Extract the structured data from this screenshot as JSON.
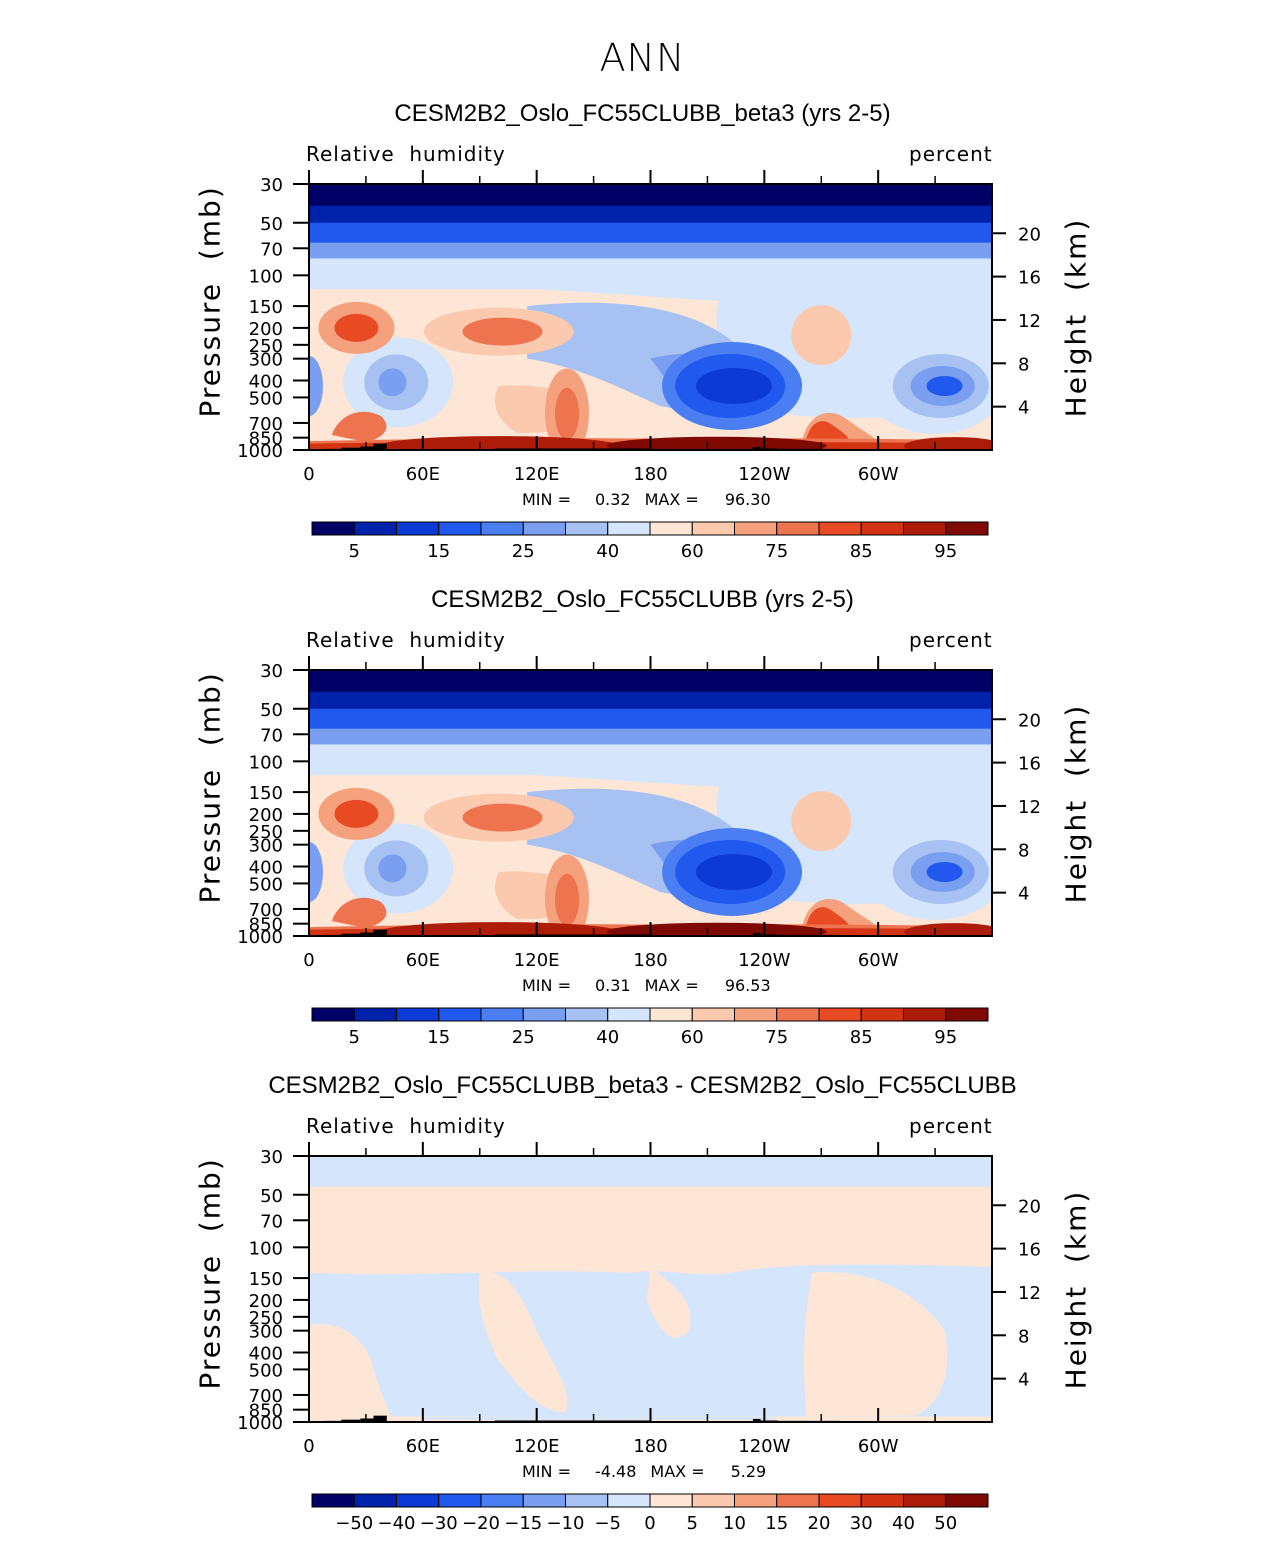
{
  "page": {
    "title": "ANN"
  },
  "colors": {
    "rh_levels": [
      "#000066",
      "#0021aa",
      "#0c3ad4",
      "#2158ee",
      "#4a7ef2",
      "#7a9ef0",
      "#a6c1f2",
      "#d5e5fb",
      "#fde6d6",
      "#fbc9ae",
      "#f5a17e",
      "#ee7450",
      "#e84a24",
      "#d23312",
      "#ac1c08",
      "#7f0a04"
    ],
    "diff_levels": [
      "#000066",
      "#0021aa",
      "#0c3ad4",
      "#2158ee",
      "#4a7ef2",
      "#7a9ef0",
      "#a6c1f2",
      "#d5e5fb",
      "#fde6d6",
      "#fbc9ae",
      "#f5a17e",
      "#ee7450",
      "#e84a24",
      "#d23312",
      "#ac1c08",
      "#7f0a04"
    ],
    "diff_field_pos": "#fde6d6",
    "diff_field_neg": "#d5e5fb",
    "topography": "#000000"
  },
  "panels": [
    {
      "title": "CESM2B2_Oslo_FC55CLUBB_beta3 (yrs 2-5)",
      "left_label": "Relative  humidity",
      "right_label": "percent",
      "min_label": "MIN =",
      "min_value": "0.32",
      "max_label": "MAX =",
      "max_value": "96.30",
      "kind": "rh"
    },
    {
      "title": "CESM2B2_Oslo_FC55CLUBB (yrs 2-5)",
      "left_label": "Relative  humidity",
      "right_label": "percent",
      "min_label": "MIN =",
      "min_value": "0.31",
      "max_label": "MAX =",
      "max_value": "96.53",
      "kind": "rh"
    },
    {
      "title": "CESM2B2_Oslo_FC55CLUBB_beta3 - CESM2B2_Oslo_FC55CLUBB",
      "left_label": "Relative  humidity",
      "right_label": "percent",
      "min_label": "MIN =",
      "min_value": "-4.48",
      "max_label": "MAX =",
      "max_value": "5.29",
      "kind": "diff"
    }
  ],
  "chart_data": [
    {
      "type": "heatmap",
      "title": "CESM2B2_Oslo_FC55CLUBB_beta3 (yrs 2-5)",
      "variable": "Relative humidity",
      "units": "percent",
      "xlabel": "",
      "ylabel": "Pressure (mb)",
      "y2label": "Height (km)",
      "x_ticks": [
        "0",
        "60E",
        "120E",
        "180",
        "120W",
        "60W"
      ],
      "y_ticks": [
        "30",
        "50",
        "70",
        "100",
        "150",
        "200",
        "250",
        "300",
        "400",
        "500",
        "700",
        "850",
        "1000"
      ],
      "y2_ticks": [
        "20",
        "16",
        "12",
        "8",
        "4"
      ],
      "colorbar_labels": [
        "5",
        "15",
        "25",
        "40",
        "60",
        "75",
        "85",
        "95"
      ],
      "min": 0.32,
      "max": 96.3
    },
    {
      "type": "heatmap",
      "title": "CESM2B2_Oslo_FC55CLUBB (yrs 2-5)",
      "variable": "Relative humidity",
      "units": "percent",
      "xlabel": "",
      "ylabel": "Pressure (mb)",
      "y2label": "Height (km)",
      "x_ticks": [
        "0",
        "60E",
        "120E",
        "180",
        "120W",
        "60W"
      ],
      "y_ticks": [
        "30",
        "50",
        "70",
        "100",
        "150",
        "200",
        "250",
        "300",
        "400",
        "500",
        "700",
        "850",
        "1000"
      ],
      "y2_ticks": [
        "20",
        "16",
        "12",
        "8",
        "4"
      ],
      "colorbar_labels": [
        "5",
        "15",
        "25",
        "40",
        "60",
        "75",
        "85",
        "95"
      ],
      "min": 0.31,
      "max": 96.53
    },
    {
      "type": "heatmap",
      "title": "CESM2B2_Oslo_FC55CLUBB_beta3 - CESM2B2_Oslo_FC55CLUBB",
      "variable": "Relative humidity",
      "units": "percent",
      "xlabel": "",
      "ylabel": "Pressure (mb)",
      "y2label": "Height (km)",
      "x_ticks": [
        "0",
        "60E",
        "120E",
        "180",
        "120W",
        "60W"
      ],
      "y_ticks": [
        "30",
        "50",
        "70",
        "100",
        "150",
        "200",
        "250",
        "300",
        "400",
        "500",
        "700",
        "850",
        "1000"
      ],
      "y2_ticks": [
        "20",
        "16",
        "12",
        "8",
        "4"
      ],
      "colorbar_labels": [
        "−50",
        "−40",
        "−30",
        "−20",
        "−15",
        "−10",
        "−5",
        "0",
        "5",
        "10",
        "15",
        "20",
        "30",
        "40",
        "50"
      ],
      "min": -4.48,
      "max": 5.29
    }
  ],
  "axis_titles": {
    "y_left": "Pressure  (mb)",
    "y_right": "Height  (km)"
  }
}
